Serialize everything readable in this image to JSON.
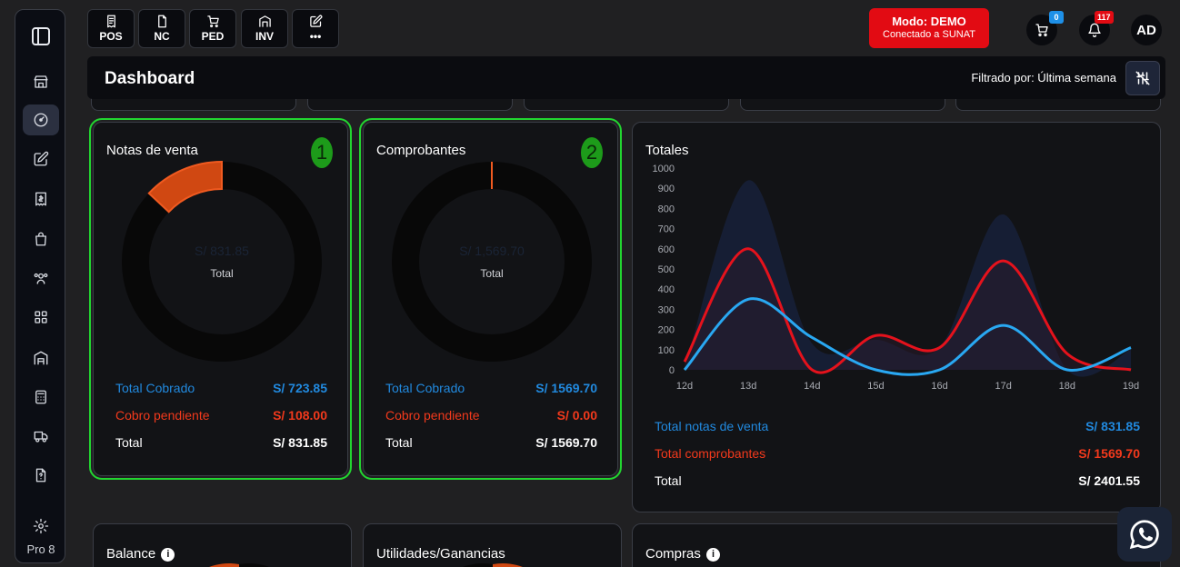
{
  "sidebar": {
    "version": "Pro 8",
    "items": [
      {
        "icon": "store-icon"
      },
      {
        "icon": "dashboard-gauge-icon",
        "active": true
      },
      {
        "icon": "edit-icon"
      },
      {
        "icon": "receipt-icon"
      },
      {
        "icon": "shopping-bag-icon"
      },
      {
        "icon": "users-icon"
      },
      {
        "icon": "apps-grid-icon"
      },
      {
        "icon": "warehouse-icon"
      },
      {
        "icon": "calculator-icon"
      },
      {
        "icon": "truck-icon"
      },
      {
        "icon": "document-help-icon"
      },
      {
        "icon": "settings-gear-icon"
      }
    ]
  },
  "topbar": {
    "quick": [
      {
        "label": "POS",
        "icon": "receipt-icon"
      },
      {
        "label": "NC",
        "icon": "file-icon"
      },
      {
        "label": "PED",
        "icon": "cart-icon"
      },
      {
        "label": "INV",
        "icon": "warehouse-icon"
      },
      {
        "label": "•••",
        "icon": "edit-icon"
      }
    ],
    "mode": {
      "title": "Modo: DEMO",
      "subtitle": "Conectado a SUNAT"
    },
    "cart_count": "0",
    "notif_count": "117",
    "avatar": "AD"
  },
  "header": {
    "title": "Dashboard",
    "filter": "Filtrado por: Última semana"
  },
  "colors": {
    "blue": "#2189de",
    "red": "#f2391c",
    "line_blue": "#29a8f2",
    "line_red": "#e5121c",
    "highlight": "#22d630"
  },
  "notas": {
    "title": "Notas de venta",
    "badge": "1",
    "center_value": "S/ 831.85",
    "center_label": "Total",
    "cobrado_fraction": 0.87,
    "rows": [
      {
        "label": "Total Cobrado",
        "value": "S/ 723.85"
      },
      {
        "label": "Cobro pendiente",
        "value": "S/ 108.00"
      },
      {
        "label": "Total",
        "value": "S/ 831.85"
      }
    ]
  },
  "comprobantes": {
    "title": "Comprobantes",
    "badge": "2",
    "center_value": "S/ 1,569.70",
    "center_label": "Total",
    "cobrado_fraction": 1.0,
    "rows": [
      {
        "label": "Total Cobrado",
        "value": "S/ 1569.70"
      },
      {
        "label": "Cobro pendiente",
        "value": "S/ 0.00"
      },
      {
        "label": "Total",
        "value": "S/ 1569.70"
      }
    ]
  },
  "totales": {
    "title": "Totales",
    "rows": [
      {
        "label": "Total notas de venta",
        "value": "S/ 831.85"
      },
      {
        "label": "Total comprobantes",
        "value": "S/ 1569.70"
      },
      {
        "label": "Total",
        "value": "S/ 2401.55"
      }
    ]
  },
  "bottom": {
    "balance": "Balance",
    "utilidades": "Utilidades/Ganancias",
    "compras": "Compras"
  },
  "chart_data": {
    "type": "line",
    "title": "Totales",
    "categories": [
      "12d",
      "13d",
      "14d",
      "15d",
      "16d",
      "17d",
      "18d",
      "19d"
    ],
    "yticks": [
      0,
      100,
      200,
      300,
      400,
      500,
      600,
      700,
      800,
      900,
      1000
    ],
    "ylim": [
      0,
      1000
    ],
    "series": [
      {
        "values": [
          0,
          940,
          130,
          150,
          110,
          770,
          0,
          100
        ],
        "style": "area"
      },
      {
        "values": [
          40,
          600,
          0,
          170,
          110,
          540,
          80,
          0
        ],
        "style": "line"
      },
      {
        "values": [
          0,
          350,
          160,
          0,
          0,
          220,
          0,
          110
        ],
        "style": "line"
      }
    ]
  }
}
